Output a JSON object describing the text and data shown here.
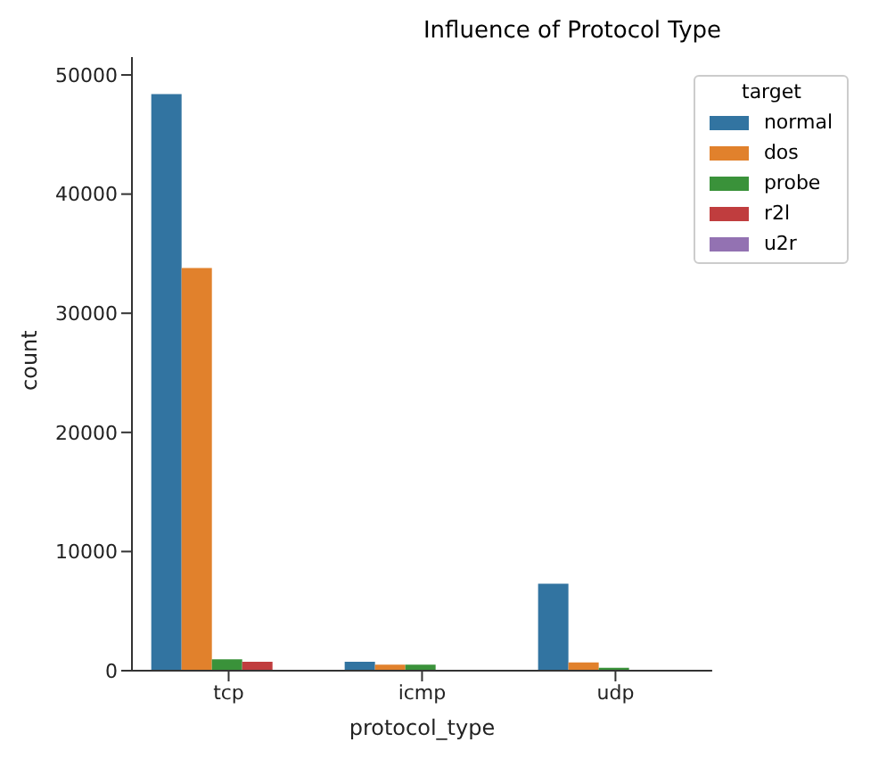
{
  "chart_data": {
    "type": "bar",
    "title": "Influence of Protocol Type",
    "xlabel": "protocol_type",
    "ylabel": "count",
    "legend_title": "target",
    "categories": [
      "tcp",
      "icmp",
      "udp"
    ],
    "series": [
      {
        "name": "normal",
        "color": "#3274a1",
        "values": [
          48400,
          750,
          7300
        ]
      },
      {
        "name": "dos",
        "color": "#e1812c",
        "values": [
          33800,
          500,
          700
        ]
      },
      {
        "name": "probe",
        "color": "#3a923a",
        "values": [
          950,
          500,
          250
        ]
      },
      {
        "name": "r2l",
        "color": "#c03d3e",
        "values": [
          750,
          0,
          0
        ]
      },
      {
        "name": "u2r",
        "color": "#9372b2",
        "values": [
          0,
          0,
          0
        ]
      }
    ],
    "ylim": [
      0,
      51500
    ],
    "yticks": [
      0,
      10000,
      20000,
      30000,
      40000,
      50000
    ],
    "legend": "top right"
  }
}
